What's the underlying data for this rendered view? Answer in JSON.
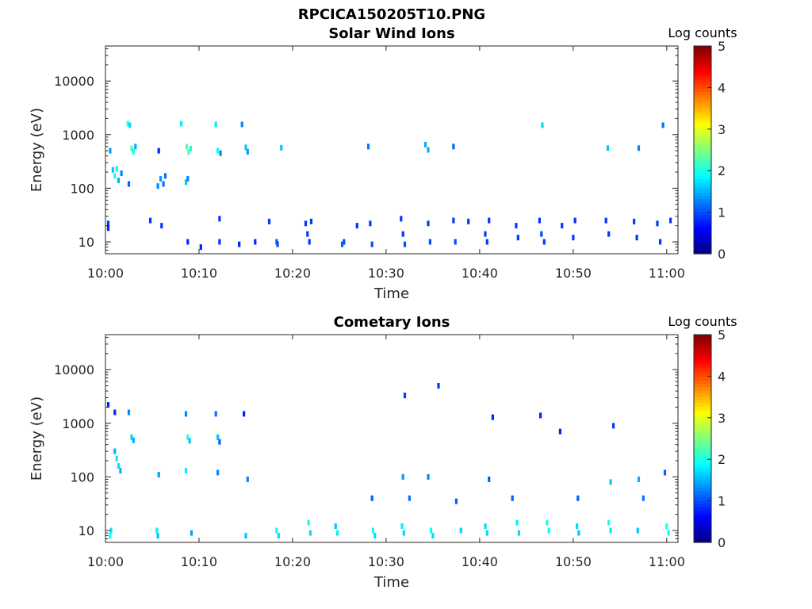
{
  "figure": {
    "title": "RPCICA150205T10.PNG"
  },
  "panels": [
    {
      "title": "Solar Wind Ions",
      "xlabel": "Time",
      "ylabel": "Energy (eV)",
      "colorbar_label": "Log counts"
    },
    {
      "title": "Cometary Ions",
      "xlabel": "Time",
      "ylabel": "Energy (eV)",
      "colorbar_label": "Log counts"
    }
  ],
  "colormap": {
    "name": "jet",
    "stops": [
      "#00007f",
      "#0000ff",
      "#007fff",
      "#00ffff",
      "#7fff7f",
      "#ffff00",
      "#ff7f00",
      "#ff0000",
      "#7f0000"
    ]
  },
  "chart_data": [
    {
      "type": "heatmap",
      "title": "Solar Wind Ions",
      "xlabel": "Time",
      "ylabel": "Energy (eV)",
      "x_ticks": [
        "10:00",
        "10:10",
        "10:20",
        "10:30",
        "10:40",
        "10:50",
        "11:00"
      ],
      "x_tick_minutes": [
        0,
        10,
        20,
        30,
        40,
        50,
        60
      ],
      "xlim_minutes": [
        0,
        61.2
      ],
      "y_scale": "log",
      "y_ticks": [
        10,
        100,
        1000,
        10000
      ],
      "y_tick_labels": [
        "10",
        "100",
        "1000",
        "10000"
      ],
      "ylim": [
        6,
        45000
      ],
      "colorbar": {
        "label": "Log counts",
        "ticks": [
          0,
          1,
          2,
          3,
          4,
          5
        ],
        "range": [
          0,
          5
        ]
      },
      "points": [
        [
          0.5,
          500,
          1.4
        ],
        [
          0.8,
          220,
          1.6
        ],
        [
          1.0,
          170,
          2.0
        ],
        [
          1.2,
          230,
          1.9
        ],
        [
          1.4,
          140,
          1.5
        ],
        [
          1.7,
          190,
          1.3
        ],
        [
          2.4,
          1600,
          2.1
        ],
        [
          2.6,
          1500,
          1.7
        ],
        [
          2.8,
          550,
          2.2
        ],
        [
          3.0,
          480,
          2.0
        ],
        [
          3.2,
          600,
          1.5
        ],
        [
          2.5,
          120,
          1.1
        ],
        [
          5.6,
          110,
          1.3
        ],
        [
          5.9,
          150,
          1.4
        ],
        [
          6.2,
          120,
          1.2
        ],
        [
          6.4,
          170,
          1.2
        ],
        [
          5.7,
          500,
          0.8
        ],
        [
          8.1,
          1600,
          1.8
        ],
        [
          8.7,
          600,
          2.3
        ],
        [
          8.9,
          470,
          2.2
        ],
        [
          9.1,
          550,
          2.0
        ],
        [
          8.6,
          130,
          1.6
        ],
        [
          8.8,
          150,
          1.3
        ],
        [
          11.8,
          1550,
          1.8
        ],
        [
          12.0,
          500,
          1.9
        ],
        [
          12.3,
          450,
          1.3
        ],
        [
          14.6,
          1550,
          1.3
        ],
        [
          15.0,
          580,
          1.6
        ],
        [
          15.2,
          480,
          1.4
        ],
        [
          18.8,
          570,
          1.6
        ],
        [
          28.1,
          600,
          1.2
        ],
        [
          34.2,
          650,
          1.5
        ],
        [
          34.5,
          520,
          1.5
        ],
        [
          37.2,
          600,
          1.1
        ],
        [
          46.7,
          1500,
          1.7
        ],
        [
          53.7,
          560,
          1.6
        ],
        [
          57.0,
          560,
          1.3
        ],
        [
          59.6,
          1500,
          1.2
        ],
        [
          0.3,
          22,
          0.9
        ],
        [
          0.3,
          18,
          0.8
        ],
        [
          4.8,
          25,
          0.9
        ],
        [
          6.0,
          20,
          0.9
        ],
        [
          8.8,
          10,
          0.8
        ],
        [
          10.2,
          8,
          0.8
        ],
        [
          12.2,
          27,
          0.9
        ],
        [
          12.2,
          10,
          0.9
        ],
        [
          14.3,
          9,
          0.8
        ],
        [
          16.0,
          10,
          0.8
        ],
        [
          17.5,
          24,
          0.9
        ],
        [
          18.3,
          10,
          1.1
        ],
        [
          18.4,
          9,
          1.0
        ],
        [
          21.4,
          22,
          0.9
        ],
        [
          21.6,
          14,
          0.9
        ],
        [
          21.8,
          10,
          0.9
        ],
        [
          22.0,
          24,
          0.9
        ],
        [
          25.3,
          9,
          1.1
        ],
        [
          25.5,
          10,
          1.0
        ],
        [
          26.9,
          20,
          0.9
        ],
        [
          28.3,
          22,
          0.9
        ],
        [
          28.5,
          9,
          1.0
        ],
        [
          31.6,
          27,
          0.9
        ],
        [
          31.8,
          14,
          0.9
        ],
        [
          32.0,
          9,
          1.0
        ],
        [
          34.5,
          22,
          0.9
        ],
        [
          34.7,
          10,
          1.0
        ],
        [
          37.2,
          25,
          0.9
        ],
        [
          37.4,
          10,
          1.0
        ],
        [
          38.8,
          24,
          0.9
        ],
        [
          40.6,
          14,
          0.9
        ],
        [
          40.8,
          10,
          0.9
        ],
        [
          41.0,
          25,
          0.9
        ],
        [
          43.9,
          20,
          0.9
        ],
        [
          44.1,
          12,
          0.9
        ],
        [
          46.4,
          25,
          0.9
        ],
        [
          46.6,
          14,
          1.0
        ],
        [
          46.9,
          10,
          0.9
        ],
        [
          48.8,
          20,
          0.9
        ],
        [
          50.0,
          12,
          0.9
        ],
        [
          50.2,
          25,
          0.9
        ],
        [
          53.5,
          25,
          0.9
        ],
        [
          53.8,
          14,
          0.9
        ],
        [
          56.5,
          24,
          0.9
        ],
        [
          56.8,
          12,
          0.9
        ],
        [
          59.0,
          22,
          0.9
        ],
        [
          59.3,
          10,
          0.9
        ],
        [
          60.4,
          25,
          0.9
        ]
      ]
    },
    {
      "type": "heatmap",
      "title": "Cometary Ions",
      "xlabel": "Time",
      "ylabel": "Energy (eV)",
      "x_ticks": [
        "10:00",
        "10:10",
        "10:20",
        "10:30",
        "10:40",
        "10:50",
        "11:00"
      ],
      "x_tick_minutes": [
        0,
        10,
        20,
        30,
        40,
        50,
        60
      ],
      "xlim_minutes": [
        0,
        61.2
      ],
      "y_scale": "log",
      "y_ticks": [
        10,
        100,
        1000,
        10000
      ],
      "y_tick_labels": [
        "10",
        "100",
        "1000",
        "10000"
      ],
      "ylim": [
        6,
        45000
      ],
      "colorbar": {
        "label": "Log counts",
        "ticks": [
          0,
          1,
          2,
          3,
          4,
          5
        ],
        "range": [
          0,
          5
        ]
      },
      "points": [
        [
          0.3,
          2200,
          0.8
        ],
        [
          1.0,
          1600,
          0.8
        ],
        [
          2.5,
          1600,
          1.3
        ],
        [
          2.8,
          550,
          1.7
        ],
        [
          3.0,
          480,
          1.5
        ],
        [
          8.6,
          1500,
          1.3
        ],
        [
          8.8,
          550,
          2.1
        ],
        [
          9.0,
          470,
          1.6
        ],
        [
          11.8,
          1500,
          1.2
        ],
        [
          12.0,
          550,
          1.6
        ],
        [
          12.2,
          450,
          1.1
        ],
        [
          14.8,
          1500,
          0.8
        ],
        [
          1.0,
          300,
          1.5
        ],
        [
          1.2,
          220,
          1.8
        ],
        [
          1.4,
          160,
          1.7
        ],
        [
          1.6,
          130,
          1.5
        ],
        [
          5.7,
          110,
          1.4
        ],
        [
          8.6,
          130,
          1.8
        ],
        [
          12.0,
          120,
          1.3
        ],
        [
          15.2,
          90,
          1.3
        ],
        [
          31.8,
          100,
          1.4
        ],
        [
          32.0,
          3300,
          0.9
        ],
        [
          34.5,
          100,
          1.3
        ],
        [
          35.6,
          5000,
          0.9
        ],
        [
          41.0,
          90,
          1.1
        ],
        [
          41.4,
          1300,
          0.8
        ],
        [
          46.5,
          1400,
          0.8
        ],
        [
          48.6,
          700,
          0.8
        ],
        [
          54.3,
          900,
          0.9
        ],
        [
          54.0,
          80,
          1.6
        ],
        [
          57.0,
          90,
          1.5
        ],
        [
          59.8,
          120,
          1.1
        ],
        [
          0.5,
          8,
          1.9
        ],
        [
          0.6,
          10,
          1.8
        ],
        [
          5.5,
          10,
          1.8
        ],
        [
          5.6,
          8,
          1.6
        ],
        [
          9.2,
          9,
          1.4
        ],
        [
          15.0,
          8,
          1.6
        ],
        [
          18.3,
          10,
          1.9
        ],
        [
          18.5,
          8,
          1.7
        ],
        [
          21.7,
          14,
          2.0
        ],
        [
          21.9,
          9,
          1.7
        ],
        [
          24.6,
          12,
          1.6
        ],
        [
          24.8,
          9,
          1.8
        ],
        [
          28.6,
          10,
          1.9
        ],
        [
          28.8,
          8,
          1.7
        ],
        [
          31.7,
          12,
          1.8
        ],
        [
          31.9,
          9,
          1.7
        ],
        [
          34.8,
          10,
          1.9
        ],
        [
          35.0,
          8,
          1.7
        ],
        [
          38.0,
          10,
          1.7
        ],
        [
          40.6,
          12,
          1.7
        ],
        [
          40.8,
          9,
          1.7
        ],
        [
          44.0,
          14,
          1.8
        ],
        [
          44.2,
          9,
          1.7
        ],
        [
          47.2,
          14,
          2.0
        ],
        [
          47.4,
          10,
          1.9
        ],
        [
          50.4,
          12,
          1.7
        ],
        [
          50.6,
          9,
          1.6
        ],
        [
          53.8,
          14,
          2.0
        ],
        [
          54.0,
          10,
          1.8
        ],
        [
          56.9,
          10,
          1.6
        ],
        [
          60.0,
          12,
          2.0
        ],
        [
          60.2,
          9,
          1.9
        ],
        [
          28.5,
          40,
          1.1
        ],
        [
          32.5,
          40,
          1.2
        ],
        [
          37.5,
          35,
          1.1
        ],
        [
          43.5,
          40,
          1.1
        ],
        [
          50.5,
          40,
          1.1
        ],
        [
          57.5,
          40,
          1.2
        ]
      ]
    }
  ]
}
